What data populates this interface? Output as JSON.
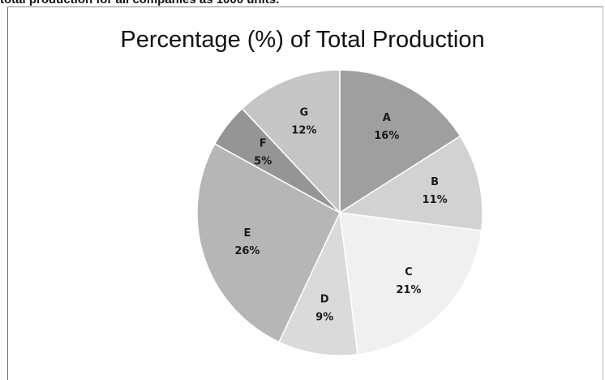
{
  "header_text": "total production for all companies as 1000 units.",
  "chart_data": {
    "type": "pie",
    "title": "Percentage (%) of Total Production",
    "categories": [
      "A",
      "B",
      "C",
      "D",
      "E",
      "F",
      "G"
    ],
    "values": [
      16,
      11,
      21,
      9,
      26,
      5,
      12
    ],
    "labels": [
      "16%",
      "11%",
      "21%",
      "9%",
      "26%",
      "5%",
      "12%"
    ],
    "colors": [
      "#9f9f9f",
      "#d2d2d2",
      "#f0f0f0",
      "#dadada",
      "#b6b6b6",
      "#959595",
      "#c5c5c5"
    ],
    "start_angle_deg": 0,
    "direction": "clockwise",
    "legend": "none"
  }
}
